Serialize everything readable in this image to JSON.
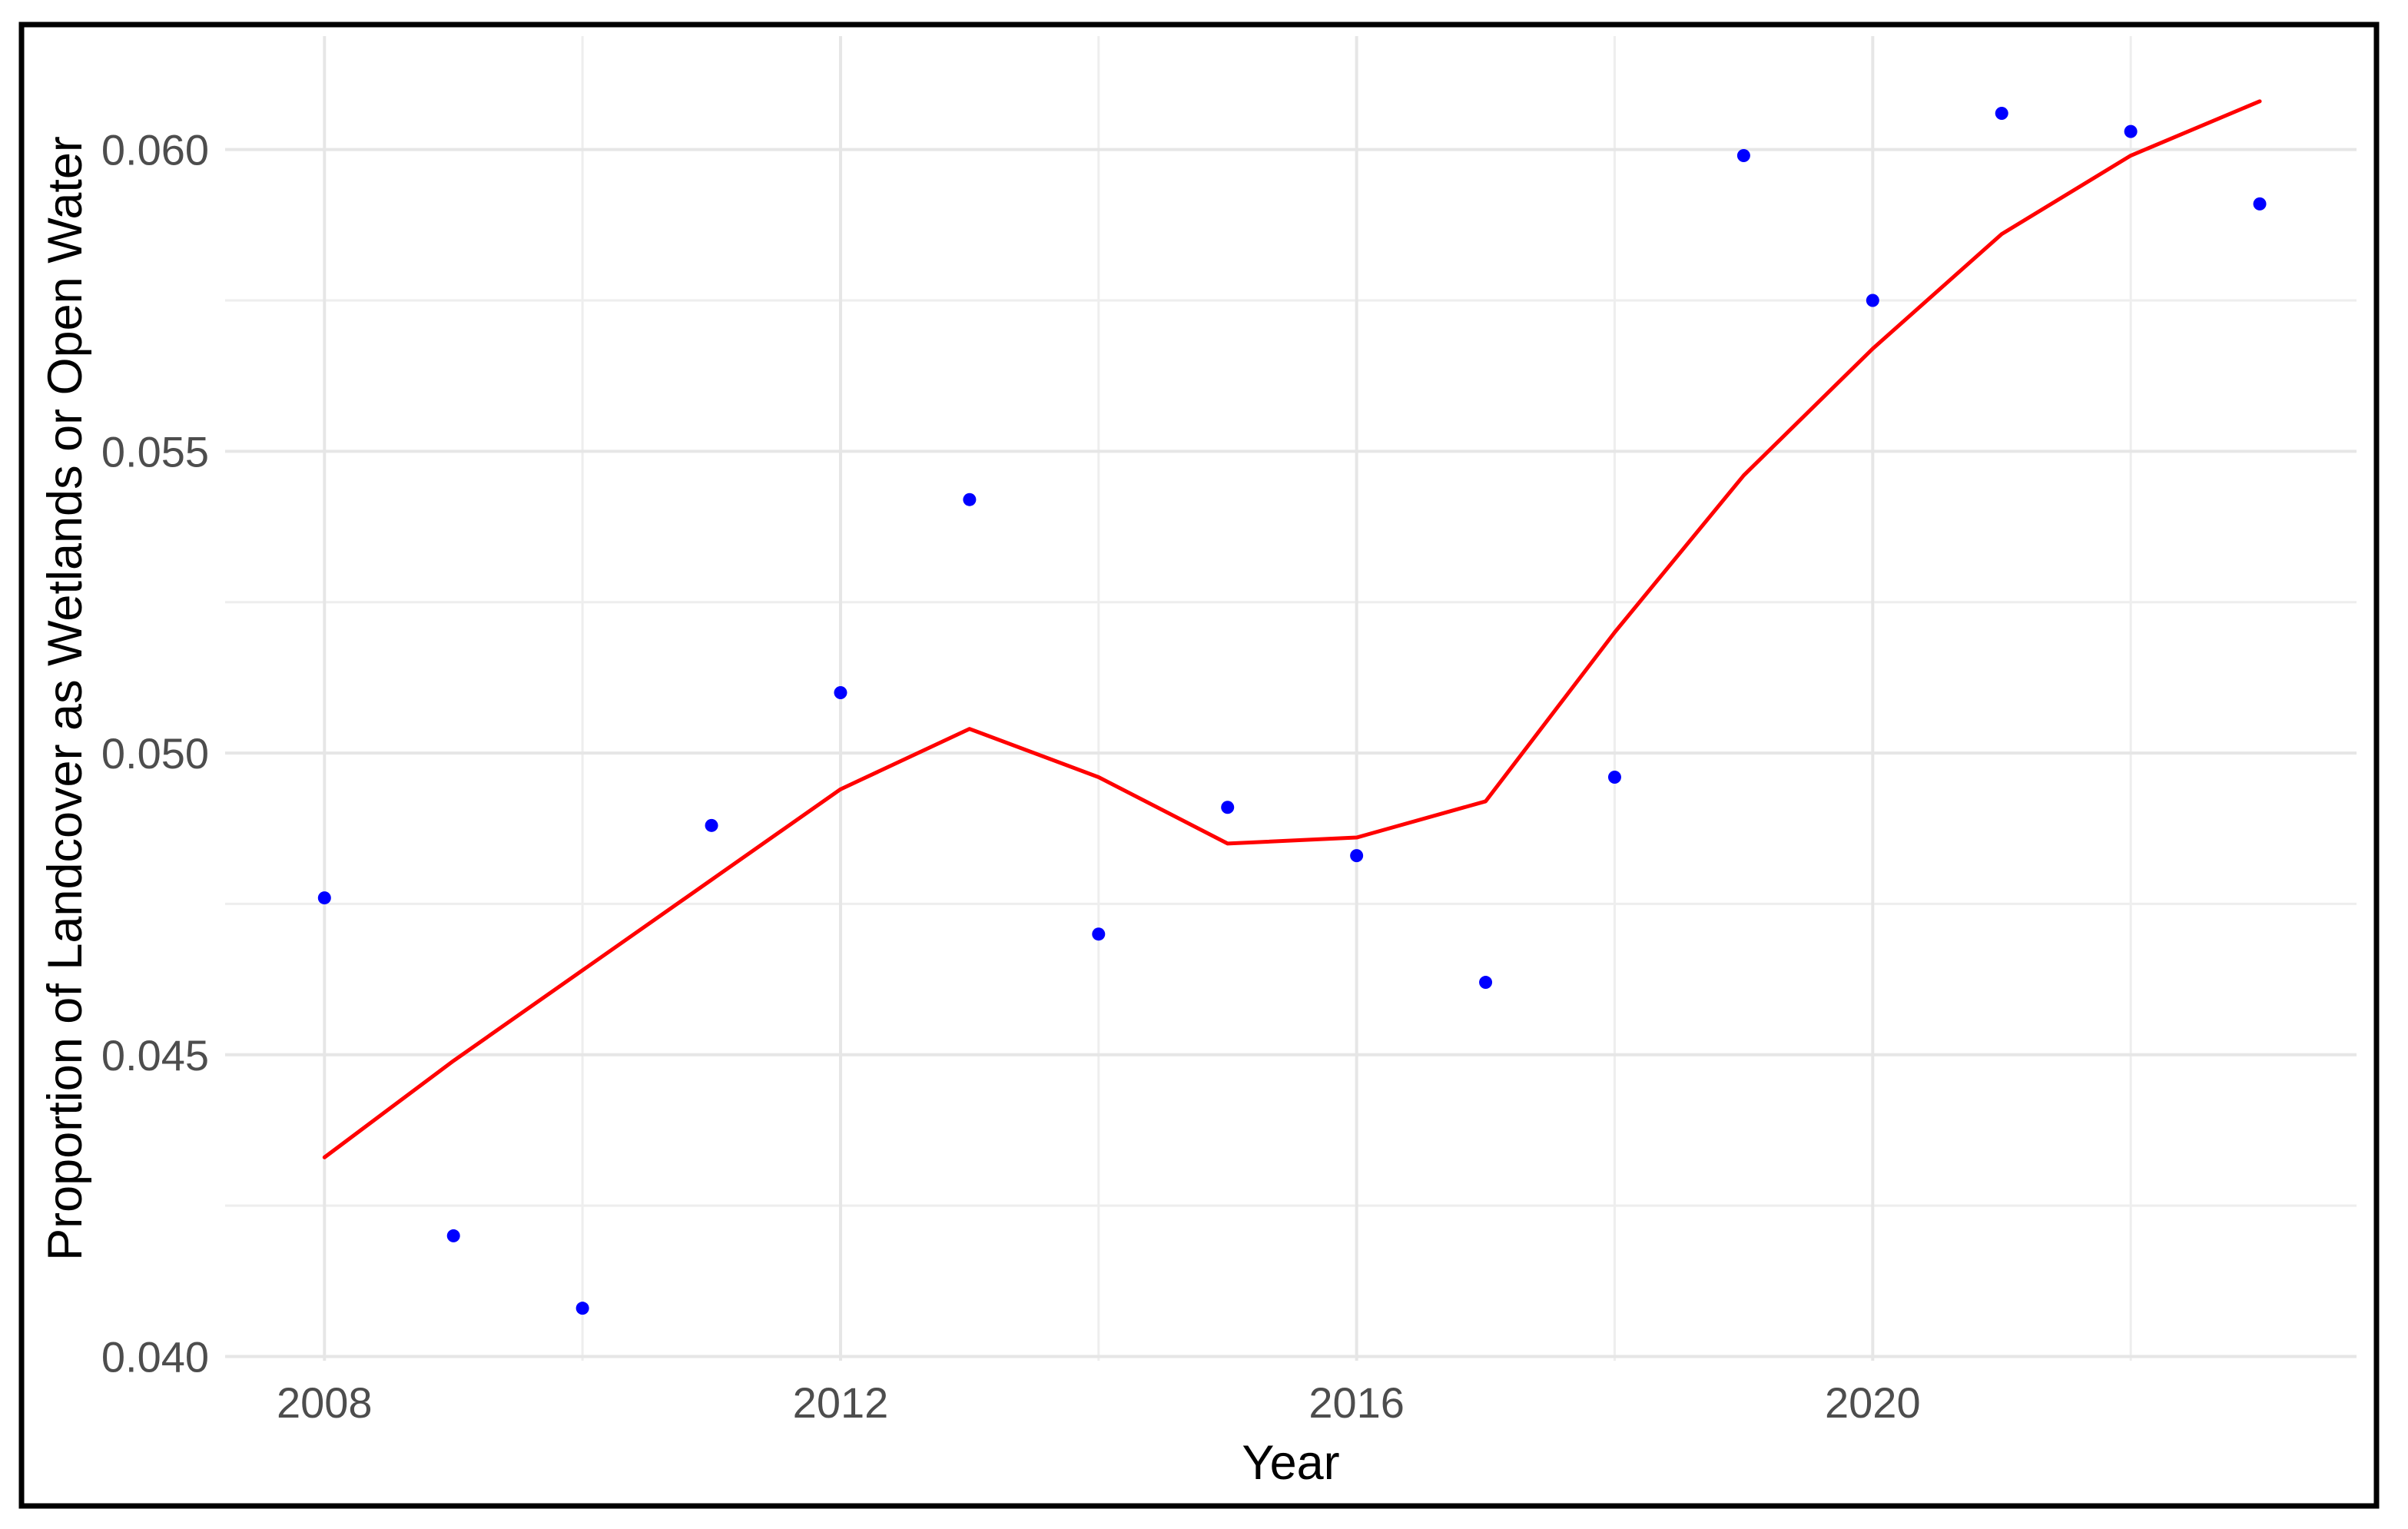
{
  "window": {
    "background": "#ffffff",
    "frame_color": "#000000"
  },
  "chart_data": {
    "type": "scatter",
    "title": "",
    "xlabel": "Year",
    "ylabel": "Proportion of Landcover as Wetlands or Open Water",
    "xlim": [
      2007.23,
      2023.75
    ],
    "ylim": [
      0.03993,
      0.06188
    ],
    "grid": "major+minor",
    "legend": "none",
    "x_ticks": [
      {
        "value": 2008,
        "label": "2008"
      },
      {
        "value": 2012,
        "label": "2012"
      },
      {
        "value": 2016,
        "label": "2016"
      },
      {
        "value": 2020,
        "label": "2020"
      }
    ],
    "x_minor_ticks": [
      2010,
      2014,
      2018,
      2022
    ],
    "y_ticks": [
      {
        "value": 0.04,
        "label": "0.040"
      },
      {
        "value": 0.045,
        "label": "0.045"
      },
      {
        "value": 0.05,
        "label": "0.050"
      },
      {
        "value": 0.055,
        "label": "0.055"
      },
      {
        "value": 0.06,
        "label": "0.060"
      }
    ],
    "y_minor_ticks": [
      0.0425,
      0.0475,
      0.0525,
      0.0575
    ],
    "series": [
      {
        "name": "annual-proportion-points",
        "type": "scatter",
        "color": "#0000ff",
        "x": [
          2008,
          2009,
          2010,
          2011,
          2012,
          2013,
          2014,
          2015,
          2016,
          2017,
          2018,
          2019,
          2020,
          2021,
          2022,
          2023
        ],
        "y": [
          0.0476,
          0.042,
          0.0408,
          0.0488,
          0.051,
          0.0542,
          0.047,
          0.0491,
          0.0483,
          0.0462,
          0.0496,
          0.0599,
          0.0575,
          0.0606,
          0.0603,
          0.0591
        ]
      },
      {
        "name": "loess-smooth-line",
        "type": "line",
        "color": "#ff0000",
        "x": [
          2008,
          2009,
          2010,
          2011,
          2012,
          2013,
          2014,
          2015,
          2016,
          2017,
          2018,
          2019,
          2020,
          2021,
          2022,
          2023
        ],
        "y": [
          0.0433,
          0.0449,
          0.0464,
          0.0479,
          0.0494,
          0.0504,
          0.0496,
          0.0485,
          0.0486,
          0.0492,
          0.052,
          0.0546,
          0.0567,
          0.0586,
          0.0599,
          0.0608
        ]
      }
    ],
    "style": {
      "grid_major_color": "#e6e6e6",
      "grid_minor_color": "#eeeeee",
      "tick_label_color": "#4d4d4d",
      "axis_title_color": "#000000",
      "point_color": "#0000ff",
      "trend_color": "#ff0000"
    }
  }
}
